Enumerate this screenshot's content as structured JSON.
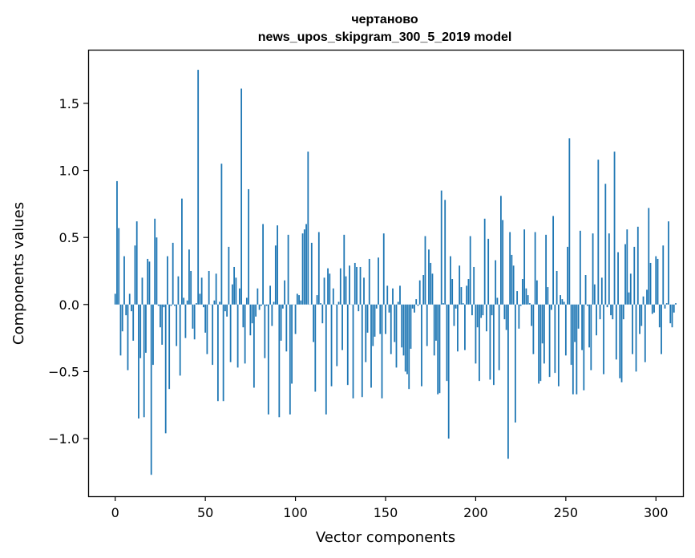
{
  "chart_data": {
    "type": "bar",
    "title": "чертаново",
    "subtitle": "news_upos_skipgram_300_5_2019 model",
    "xlabel": "Vector components",
    "ylabel": "Components values",
    "xlim": [
      -15,
      315
    ],
    "ylim": [
      -1.43,
      1.9
    ],
    "xticks": [
      0,
      50,
      100,
      150,
      200,
      250,
      300
    ],
    "yticks": [
      -1.0,
      -0.5,
      0.0,
      0.5,
      1.0,
      1.5
    ],
    "ytick_labels": [
      "−1.0",
      "−0.5",
      "0.0",
      "0.5",
      "1.0",
      "1.5"
    ],
    "grid": false,
    "bar_color": "#1f77b4",
    "x_start": 0,
    "values": [
      0.08,
      0.92,
      0.57,
      -0.38,
      -0.2,
      0.36,
      -0.08,
      -0.49,
      0.08,
      -0.05,
      -0.27,
      0.44,
      0.62,
      -0.85,
      -0.4,
      0.2,
      -0.84,
      -0.36,
      0.34,
      0.32,
      -1.27,
      -0.45,
      0.64,
      0.5,
      -0.01,
      -0.17,
      -0.3,
      -0.02,
      -0.96,
      0.36,
      -0.63,
      -0.01,
      0.46,
      -0.01,
      -0.31,
      0.21,
      -0.53,
      0.79,
      0.05,
      -0.25,
      0.03,
      0.41,
      0.25,
      -0.18,
      -0.26,
      0.01,
      1.75,
      0.08,
      0.2,
      -0.02,
      -0.21,
      -0.37,
      0.25,
      0.0,
      -0.45,
      0.03,
      0.23,
      -0.72,
      0.02,
      1.05,
      -0.72,
      -0.05,
      -0.09,
      0.43,
      -0.43,
      0.15,
      0.28,
      0.2,
      -0.47,
      0.12,
      1.61,
      -0.17,
      -0.44,
      0.05,
      0.86,
      -0.23,
      -0.14,
      -0.62,
      -0.09,
      0.12,
      -0.04,
      -0.01,
      0.6,
      -0.4,
      -0.01,
      -0.82,
      0.14,
      -0.16,
      0.02,
      0.44,
      0.59,
      -0.84,
      -0.27,
      -0.03,
      0.18,
      -0.35,
      0.52,
      -0.82,
      -0.59,
      0.0,
      -0.22,
      0.08,
      0.07,
      0.03,
      0.53,
      0.56,
      0.6,
      1.14,
      0.0,
      0.46,
      -0.28,
      -0.65,
      0.07,
      0.54,
      0.01,
      -0.14,
      0.2,
      -0.82,
      0.27,
      0.23,
      -0.61,
      0.12,
      0.0,
      -0.46,
      0.02,
      0.27,
      -0.34,
      0.52,
      0.21,
      -0.6,
      0.29,
      0.0,
      -0.7,
      0.31,
      0.28,
      -0.05,
      0.28,
      -0.69,
      0.2,
      -0.43,
      -0.21,
      0.34,
      -0.62,
      -0.31,
      -0.24,
      -0.03,
      0.35,
      -0.22,
      -0.7,
      0.53,
      -0.22,
      0.14,
      -0.06,
      -0.37,
      0.12,
      -0.28,
      -0.47,
      0.02,
      0.14,
      -0.32,
      -0.38,
      -0.5,
      -0.52,
      -0.63,
      -0.33,
      -0.03,
      -0.06,
      0.04,
      -0.01,
      0.18,
      -0.61,
      0.22,
      0.51,
      -0.31,
      0.41,
      0.31,
      0.23,
      -0.38,
      -0.27,
      -0.67,
      -0.66,
      0.85,
      0.01,
      0.78,
      -0.57,
      -1.0,
      0.36,
      0.19,
      -0.16,
      -0.03,
      -0.35,
      0.29,
      0.13,
      0.01,
      -0.34,
      0.14,
      0.19,
      0.51,
      -0.08,
      0.28,
      -0.44,
      -0.17,
      -0.57,
      -0.1,
      -0.08,
      0.64,
      -0.2,
      0.49,
      -0.56,
      -0.08,
      -0.6,
      0.33,
      0.05,
      -0.49,
      0.81,
      0.63,
      -0.11,
      -0.19,
      -1.15,
      0.54,
      0.37,
      0.29,
      -0.88,
      0.1,
      -0.18,
      -0.01,
      0.19,
      0.56,
      0.12,
      0.07,
      0.01,
      -0.16,
      -0.37,
      0.54,
      0.18,
      -0.59,
      -0.57,
      -0.29,
      -0.44,
      0.52,
      0.13,
      -0.54,
      -0.04,
      0.66,
      -0.51,
      0.25,
      -0.61,
      0.07,
      0.04,
      0.02,
      -0.38,
      0.43,
      1.24,
      -0.45,
      -0.67,
      -0.28,
      -0.67,
      -0.18,
      0.55,
      -0.34,
      -0.64,
      0.22,
      -0.01,
      -0.32,
      -0.49,
      0.53,
      0.15,
      -0.23,
      1.08,
      -0.11,
      0.2,
      -0.52,
      0.9,
      -0.02,
      0.53,
      -0.08,
      -0.11,
      1.14,
      -0.41,
      0.39,
      -0.55,
      -0.58,
      -0.11,
      0.45,
      0.56,
      0.09,
      0.23,
      -0.37,
      0.43,
      -0.5,
      0.58,
      -0.22,
      -0.16,
      0.06,
      -0.43,
      0.11,
      0.72,
      0.31,
      -0.07,
      -0.06,
      0.36,
      0.34,
      -0.17,
      -0.37,
      0.44,
      -0.03,
      0.01,
      0.62,
      -0.14,
      -0.17,
      -0.06,
      0.01
    ]
  }
}
